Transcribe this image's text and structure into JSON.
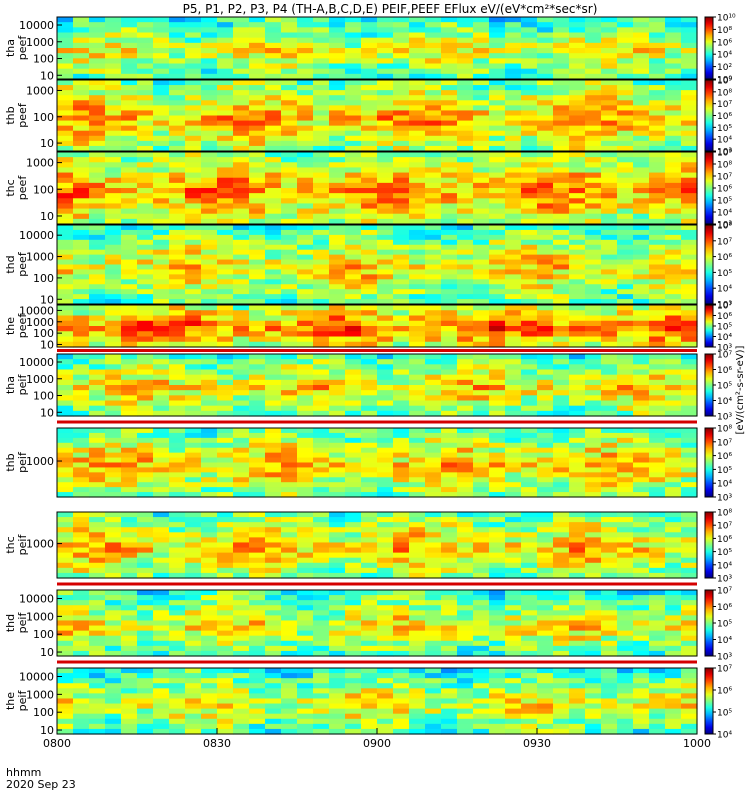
{
  "chart_data": {
    "type": "heatmap",
    "title": "P5, P1, P2, P3, P4 (TH-A,B,C,D,E) PEIF,PEEF EFlux eV/(eV*cm²*sec*sr)",
    "time_label_top": "hhmm",
    "time_label_bottom": "2020 Sep 23",
    "x_ticks": [
      "0800",
      "0830",
      "0900",
      "0930",
      "1000"
    ],
    "x_range": [
      "08:00",
      "10:00"
    ],
    "colorbar_unit": "[eV/(cm²-s-sr-eV)]",
    "panels": [
      {
        "line1": "tha",
        "line2": "peef",
        "y_scale": "log",
        "y_ticks": [
          "10",
          "100",
          "1000",
          "10000"
        ],
        "y_range": [
          6,
          30000
        ],
        "colorbar_ticks": [
          "10⁰",
          "10²",
          "10⁴",
          "10⁶",
          "10⁸",
          "10¹⁰"
        ],
        "cb_range": [
          0,
          10
        ],
        "level_mean": 0.48
      },
      {
        "line1": "thb",
        "line2": "peef",
        "y_scale": "log",
        "y_ticks": [
          "10",
          "100",
          "1000"
        ],
        "y_range": [
          5,
          2500
        ],
        "colorbar_ticks": [
          "10³",
          "10⁴",
          "10⁵",
          "10⁶",
          "10⁷",
          "10⁸",
          "10⁹"
        ],
        "cb_range": [
          3,
          9
        ],
        "level_mean": 0.65
      },
      {
        "line1": "thc",
        "line2": "peef",
        "y_scale": "log",
        "y_ticks": [
          "10",
          "100",
          "1000"
        ],
        "y_range": [
          5,
          2500
        ],
        "colorbar_ticks": [
          "10³",
          "10⁴",
          "10⁵",
          "10⁶",
          "10⁷",
          "10⁸",
          "10⁹"
        ],
        "cb_range": [
          3,
          9
        ],
        "level_mean": 0.7
      },
      {
        "line1": "thd",
        "line2": "peef",
        "y_scale": "log",
        "y_ticks": [
          "10",
          "100",
          "1000",
          "10000"
        ],
        "y_range": [
          6,
          30000
        ],
        "colorbar_ticks": [
          "10³",
          "10⁴",
          "10⁵",
          "10⁶",
          "10⁷",
          "10⁸"
        ],
        "cb_range": [
          3,
          8
        ],
        "level_mean": 0.55
      },
      {
        "line1": "the",
        "line2": "peef",
        "y_scale": "log",
        "y_ticks": [
          "10",
          "100",
          "1000",
          "10000"
        ],
        "y_range": [
          6,
          30000
        ],
        "colorbar_ticks": [
          "10³",
          "10⁴",
          "10⁵",
          "10⁶",
          "10⁷"
        ],
        "cb_range": [
          3,
          7
        ],
        "level_mean": 0.78
      },
      {
        "line1": "tha",
        "line2": "peif",
        "y_scale": "log",
        "y_ticks": [
          "10",
          "100",
          "1000",
          "10000"
        ],
        "y_range": [
          6,
          30000
        ],
        "colorbar_ticks": [
          "10³",
          "10⁴",
          "10⁵",
          "10⁶",
          "10⁷"
        ],
        "cb_range": [
          3,
          7
        ],
        "level_mean": 0.55
      },
      {
        "line1": "thb",
        "line2": "peif",
        "y_scale": "log",
        "y_ticks": [
          "1000"
        ],
        "y_range": [
          30,
          25000
        ],
        "colorbar_ticks": [
          "10³",
          "10⁴",
          "10⁵",
          "10⁶",
          "10⁷",
          "10⁸"
        ],
        "cb_range": [
          3,
          8
        ],
        "level_mean": 0.6
      },
      {
        "line1": "thc",
        "line2": "peif",
        "y_scale": "log",
        "y_ticks": [
          "1000"
        ],
        "y_range": [
          30,
          25000
        ],
        "colorbar_ticks": [
          "10³",
          "10⁴",
          "10⁵",
          "10⁶",
          "10⁷",
          "10⁸"
        ],
        "cb_range": [
          3,
          8
        ],
        "level_mean": 0.6
      },
      {
        "line1": "thd",
        "line2": "peif",
        "y_scale": "log",
        "y_ticks": [
          "10",
          "100",
          "1000",
          "10000"
        ],
        "y_range": [
          6,
          30000
        ],
        "colorbar_ticks": [
          "10³",
          "10⁴",
          "10⁵",
          "10⁶",
          "10⁷"
        ],
        "cb_range": [
          3,
          7
        ],
        "level_mean": 0.52
      },
      {
        "line1": "the",
        "line2": "peif",
        "y_scale": "log",
        "y_ticks": [
          "10",
          "100",
          "1000",
          "10000"
        ],
        "y_range": [
          6,
          30000
        ],
        "colorbar_ticks": [
          "10⁴",
          "10⁵",
          "10⁶",
          "10⁷"
        ],
        "cb_range": [
          4,
          7
        ],
        "level_mean": 0.5
      }
    ]
  }
}
